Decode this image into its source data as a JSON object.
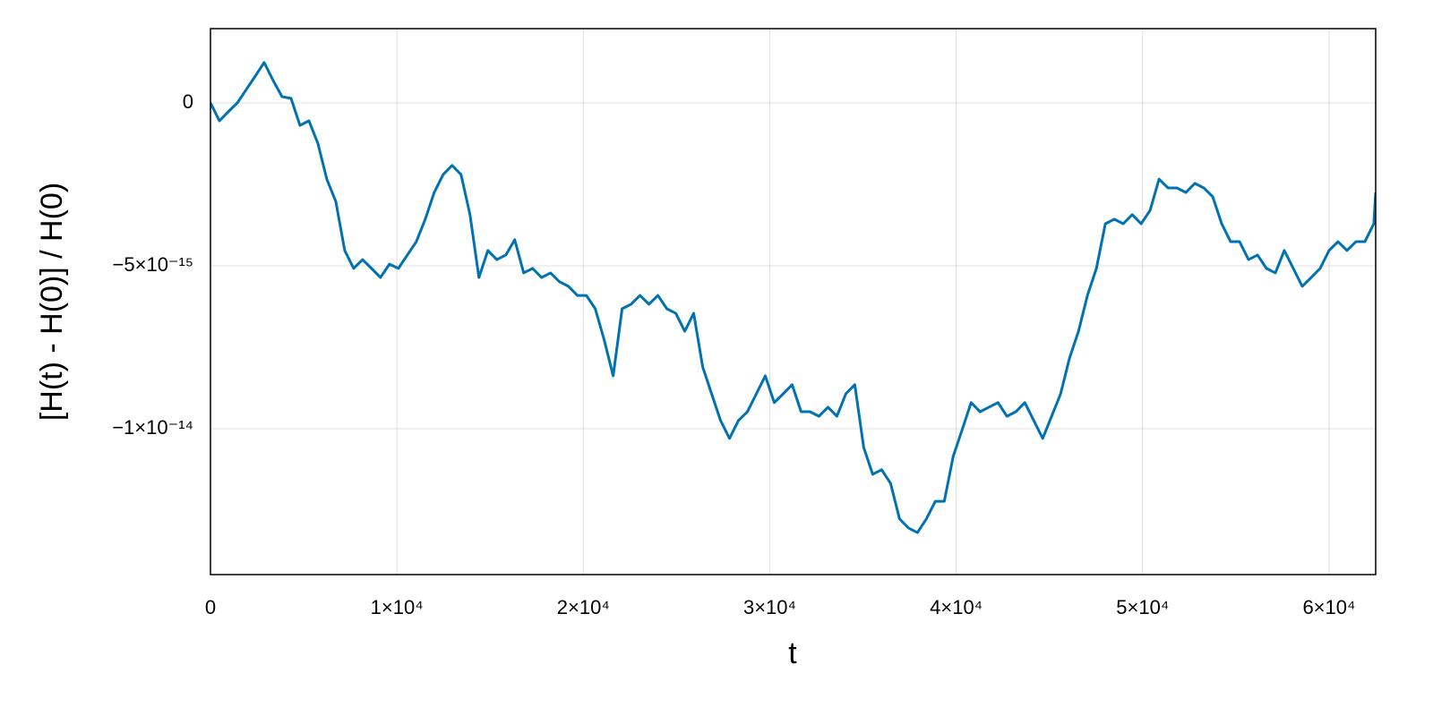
{
  "chart_data": {
    "type": "line",
    "xlabel": "t",
    "ylabel": "[H(t) - H(0)] / H(0)",
    "xlim": [
      0,
      62500
    ],
    "ylim": [
      -1.448e-14,
      2.28e-15
    ],
    "xticks": [
      0,
      {
        "value": 10000,
        "label": "1×10⁴"
      },
      {
        "value": 20000,
        "label": "2×10⁴"
      },
      {
        "value": 30000,
        "label": "3×10⁴"
      },
      {
        "value": 40000,
        "label": "4×10⁴"
      },
      {
        "value": 50000,
        "label": "5×10⁴"
      },
      {
        "value": 60000,
        "label": "6×10⁴"
      }
    ],
    "yticks": [
      0,
      {
        "value": -5e-15,
        "label": "−5×10⁻¹⁵"
      },
      {
        "value": -1e-14,
        "label": "−1×10⁻¹⁴"
      }
    ],
    "grid": true,
    "x": [
      0,
      480,
      960,
      1440,
      1920,
      2400,
      2880,
      3360,
      3840,
      4320,
      4800,
      5280,
      5760,
      6240,
      6720,
      7200,
      7680,
      8160,
      8640,
      9120,
      9600,
      10080,
      10560,
      11040,
      11520,
      12000,
      12480,
      12960,
      13440,
      13920,
      14400,
      14880,
      15360,
      15840,
      16320,
      16800,
      17280,
      17760,
      18240,
      18720,
      19200,
      19680,
      20160,
      20640,
      21120,
      21600,
      22080,
      22560,
      23040,
      23520,
      24000,
      24480,
      24960,
      25440,
      25920,
      26400,
      26880,
      27360,
      27840,
      28320,
      28800,
      29280,
      29760,
      30240,
      30720,
      31200,
      31680,
      32160,
      32640,
      33120,
      33600,
      34080,
      34560,
      35040,
      35520,
      36000,
      36480,
      36960,
      37440,
      37920,
      38400,
      38880,
      39360,
      39840,
      40320,
      40800,
      41280,
      41760,
      42240,
      42720,
      43200,
      43680,
      44160,
      44640,
      45120,
      45600,
      46080,
      46560,
      47040,
      47520,
      48000,
      48480,
      48960,
      49440,
      49920,
      50400,
      50880,
      51360,
      51840,
      52320,
      52800,
      53280,
      53760,
      54240,
      54720,
      55200,
      55680,
      56160,
      56640,
      57120,
      57600,
      58080,
      58560,
      59040,
      59520,
      60000,
      60480,
      60960,
      61440,
      61920,
      62400,
      62500
    ],
    "series": [
      {
        "color": "#0072b2",
        "values": [
          0,
          -5.5e-16,
          -2.7e-16,
          0,
          4.1e-16,
          8.2e-16,
          1.24e-15,
          6.9e-16,
          1.9e-16,
          1.4e-16,
          -6.9e-16,
          -5.5e-16,
          -1.24e-15,
          -2.34e-15,
          -3.02e-15,
          -4.53e-15,
          -5.08e-15,
          -4.81e-15,
          -5.08e-15,
          -5.36e-15,
          -4.95e-15,
          -5.08e-15,
          -4.67e-15,
          -4.26e-15,
          -3.57e-15,
          -2.75e-15,
          -2.2e-15,
          -1.92e-15,
          -2.2e-15,
          -3.43e-15,
          -5.36e-15,
          -4.53e-15,
          -4.81e-15,
          -4.67e-15,
          -4.2e-15,
          -5.22e-15,
          -5.08e-15,
          -5.36e-15,
          -5.22e-15,
          -5.49e-15,
          -5.63e-15,
          -5.91e-15,
          -5.91e-15,
          -6.32e-15,
          -7.28e-15,
          -8.38e-15,
          -6.32e-15,
          -6.18e-15,
          -5.91e-15,
          -6.18e-15,
          -5.91e-15,
          -6.32e-15,
          -6.46e-15,
          -7.01e-15,
          -6.46e-15,
          -8.1e-15,
          -8.93e-15,
          -9.75e-15,
          -1.03e-14,
          -9.75e-15,
          -9.48e-15,
          -8.93e-15,
          -8.38e-15,
          -9.2e-15,
          -8.93e-15,
          -8.65e-15,
          -9.48e-15,
          -9.48e-15,
          -9.62e-15,
          -9.34e-15,
          -9.62e-15,
          -8.93e-15,
          -8.65e-15,
          -1.058e-14,
          -1.14e-14,
          -1.126e-14,
          -1.168e-14,
          -1.277e-14,
          -1.305e-14,
          -1.319e-14,
          -1.277e-14,
          -1.223e-14,
          -1.223e-14,
          -1.085e-14,
          -1.003e-14,
          -9.2e-15,
          -9.48e-15,
          -9.34e-15,
          -9.2e-15,
          -9.62e-15,
          -9.48e-15,
          -9.2e-15,
          -9.75e-15,
          -1.03e-14,
          -9.62e-15,
          -8.93e-15,
          -7.83e-15,
          -7.01e-15,
          -5.91e-15,
          -5.08e-15,
          -3.71e-15,
          -3.57e-15,
          -3.71e-15,
          -3.43e-15,
          -3.71e-15,
          -3.3e-15,
          -2.34e-15,
          -2.61e-15,
          -2.61e-15,
          -2.75e-15,
          -2.47e-15,
          -2.61e-15,
          -2.88e-15,
          -3.71e-15,
          -4.26e-15,
          -4.26e-15,
          -4.81e-15,
          -4.67e-15,
          -5.08e-15,
          -5.22e-15,
          -4.53e-15,
          -5.08e-15,
          -5.63e-15,
          -5.36e-15,
          -5.08e-15,
          -4.53e-15,
          -4.26e-15,
          -4.53e-15,
          -4.26e-15,
          -4.26e-15,
          -3.71e-15,
          -2.75e-15
        ]
      }
    ]
  }
}
